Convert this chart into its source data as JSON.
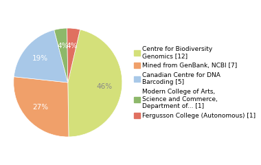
{
  "labels": [
    "Centre for Biodiversity\nGenomics [12]",
    "Mined from GenBank, NCBI [7]",
    "Canadian Centre for DNA\nBarcoding [5]",
    "Modern College of Arts,\nScience and Commerce,\nDepartment of... [1]",
    "Fergusson College (Autonomous) [1]"
  ],
  "values": [
    12,
    7,
    5,
    1,
    1
  ],
  "colors": [
    "#d4e07a",
    "#f0a06a",
    "#a8c8e8",
    "#8db86a",
    "#e07060"
  ],
  "startangle": 77,
  "figsize": [
    3.8,
    2.4
  ],
  "dpi": 100,
  "pct_colors": [
    "#888888",
    "#ffffff",
    "#ffffff",
    "#ffffff",
    "#ffffff"
  ],
  "legend_fontsize": 6.5,
  "pct_fontsize": 7.5
}
